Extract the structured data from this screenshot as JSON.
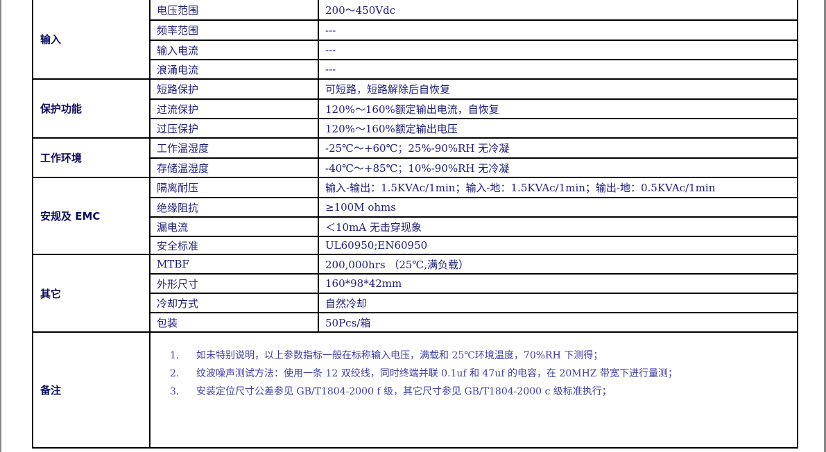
{
  "groups": [
    {
      "name": "输入",
      "rows": [
        [
          "电压范围",
          "200～450Vdc"
        ],
        [
          "频率范围",
          "---"
        ],
        [
          "输入电流",
          "---"
        ],
        [
          "浪涌电流",
          "---"
        ]
      ]
    },
    {
      "name": "保护功能",
      "rows": [
        [
          "短路保护",
          "可短路，短路解除后自恢复"
        ],
        [
          "过流保护",
          "120%～160%额定输出电流，自恢复"
        ],
        [
          "过压保护",
          "120%～160%额定输出电压"
        ]
      ]
    },
    {
      "name": "工作环境",
      "rows": [
        [
          "工作温湿度",
          "-25℃～+60℃；25%-90%RH 无冷凝"
        ],
        [
          "存储温湿度",
          "-40℃～+85℃；10%-90%RH 无冷凝"
        ]
      ]
    },
    {
      "name": "安规及 EMC",
      "rows": [
        [
          "隔离耐压",
          "输入-输出：1.5KVAc/1min；输入-地：1.5KVAc/1min；输出-地：0.5KVAc/1min"
        ],
        [
          "绝缘阻抗",
          "≥100M ohms"
        ],
        [
          "漏电流",
          "＜10mA  无击穿现象"
        ],
        [
          "安全标准",
          "UL60950;EN60950"
        ]
      ]
    },
    {
      "name": "其它",
      "rows": [
        [
          "MTBF",
          "200,000hrs （25℃,满负载）"
        ],
        [
          "外形尺寸",
          "160*98*42mm"
        ],
        [
          "冷却方式",
          "自然冷却"
        ],
        [
          "包装",
          "50Pcs/箱"
        ]
      ]
    }
  ],
  "notes": {
    "label": "备注",
    "items": [
      {
        "num": "1.",
        "text": "如未特别说明，以上参数指标一般在标称输入电压，满载和 25℃环境温度，70%RH 下测得；"
      },
      {
        "num": "2.",
        "text": "纹波噪声测试方法：使用一条 12 双绞线，同时终端并联 0.1uf 和 47uf 的电容，在 20MHZ 带宽下进行量测；"
      },
      {
        "num": "3.",
        "text": "安装定位尺寸公差参见 GB/T1804-2000 f 级，其它尺寸参见 GB/T1804-2000 c 级标准执行；"
      }
    ]
  }
}
